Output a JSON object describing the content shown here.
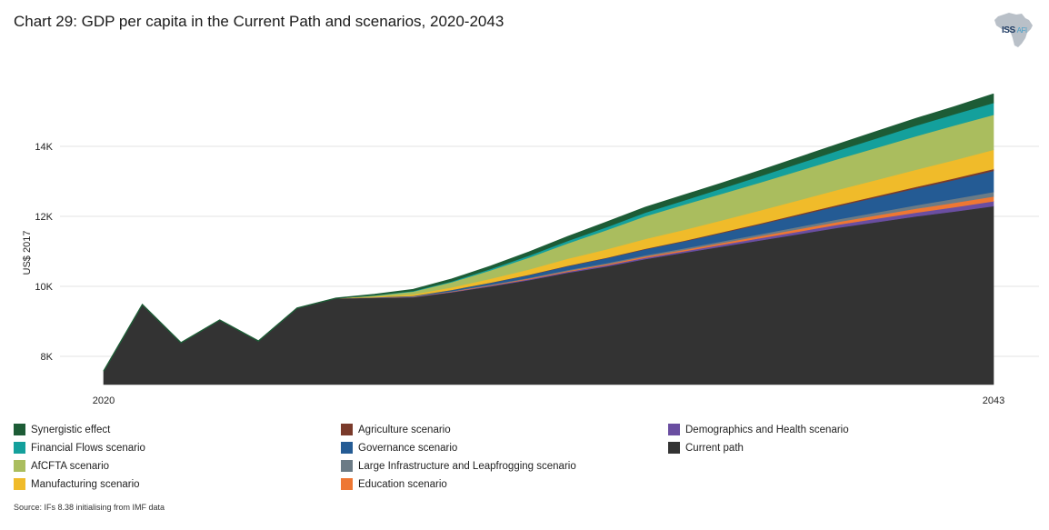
{
  "title": "Chart 29: GDP per capita in the Current Path and scenarios, 2020-2043",
  "logo": {
    "name": "ISS",
    "suffix": "AFI",
    "icon": "africa-map-icon"
  },
  "source": "Source: IFs 8.38 initialising from IMF data",
  "chart_data": {
    "type": "area",
    "stacked": true,
    "title": "Chart 29: GDP per capita in the Current Path and scenarios, 2020-2043",
    "xlabel": "",
    "ylabel": "US$ 2017",
    "ylim": [
      7200,
      15800
    ],
    "yticks": [
      8000,
      10000,
      12000,
      14000
    ],
    "ytick_labels": [
      "8K",
      "10K",
      "12K",
      "14K"
    ],
    "xticks": [
      2020,
      2043
    ],
    "xtick_labels": [
      "2020",
      "2043"
    ],
    "grid": true,
    "legend_position": "bottom",
    "x": [
      2020,
      2021,
      2022,
      2023,
      2024,
      2025,
      2026,
      2027,
      2028,
      2029,
      2030,
      2031,
      2032,
      2033,
      2034,
      2035,
      2036,
      2037,
      2038,
      2039,
      2040,
      2041,
      2042,
      2043
    ],
    "series": [
      {
        "name": "Current path",
        "color": "#333333",
        "values": [
          7580,
          9480,
          8390,
          9040,
          8440,
          9380,
          9660,
          9670,
          9690,
          9830,
          10000,
          10180,
          10390,
          10570,
          10780,
          10960,
          11140,
          11320,
          11500,
          11680,
          11840,
          12000,
          12140,
          12290
        ]
      },
      {
        "name": "Demographics and Health scenario",
        "color": "#6a4ea1",
        "values": [
          0,
          0,
          0,
          0,
          0,
          0,
          0,
          5,
          10,
          15,
          20,
          25,
          30,
          35,
          40,
          45,
          55,
          65,
          75,
          85,
          100,
          110,
          125,
          140
        ]
      },
      {
        "name": "Education scenario",
        "color": "#ee7733",
        "values": [
          0,
          0,
          0,
          0,
          0,
          0,
          0,
          3,
          6,
          10,
          15,
          20,
          25,
          30,
          35,
          40,
          50,
          60,
          70,
          80,
          95,
          110,
          125,
          140
        ]
      },
      {
        "name": "Large Infrastructure and Leapfrogging scenario",
        "color": "#6b7b86",
        "values": [
          0,
          0,
          0,
          0,
          0,
          0,
          0,
          3,
          6,
          10,
          15,
          20,
          25,
          30,
          35,
          40,
          45,
          55,
          65,
          75,
          85,
          100,
          115,
          130
        ]
      },
      {
        "name": "Governance scenario",
        "color": "#245b94",
        "values": [
          0,
          0,
          0,
          0,
          0,
          0,
          0,
          5,
          15,
          30,
          50,
          80,
          110,
          140,
          170,
          200,
          240,
          280,
          330,
          380,
          430,
          480,
          540,
          600
        ]
      },
      {
        "name": "Agriculture scenario",
        "color": "#7a3a2b",
        "values": [
          0,
          0,
          0,
          0,
          0,
          0,
          0,
          2,
          4,
          6,
          8,
          10,
          12,
          14,
          16,
          20,
          24,
          28,
          32,
          36,
          40,
          44,
          48,
          52
        ]
      },
      {
        "name": "Manufacturing scenario",
        "color": "#f0bb2a",
        "values": [
          0,
          0,
          0,
          0,
          0,
          0,
          0,
          20,
          40,
          70,
          110,
          150,
          200,
          240,
          280,
          310,
          340,
          370,
          400,
          430,
          460,
          490,
          520,
          550
        ]
      },
      {
        "name": "AfCFTA scenario",
        "color": "#aabd5e",
        "values": [
          0,
          0,
          0,
          0,
          0,
          0,
          0,
          30,
          80,
          150,
          240,
          340,
          440,
          550,
          650,
          720,
          760,
          800,
          840,
          880,
          920,
          960,
          990,
          1000
        ]
      },
      {
        "name": "Financial Flows scenario",
        "color": "#14a09c",
        "values": [
          0,
          0,
          0,
          0,
          0,
          0,
          0,
          8,
          16,
          25,
          40,
          55,
          70,
          85,
          100,
          120,
          150,
          180,
          210,
          240,
          270,
          300,
          320,
          340
        ]
      },
      {
        "name": "Synergistic effect",
        "color": "#1d5c36",
        "values": [
          0,
          0,
          0,
          0,
          0,
          0,
          0,
          20,
          40,
          60,
          75,
          100,
          120,
          140,
          150,
          150,
          150,
          160,
          170,
          180,
          190,
          200,
          210,
          250
        ]
      }
    ]
  },
  "legend": {
    "items": [
      {
        "label": "Synergistic effect",
        "color": "#1d5c36"
      },
      {
        "label": "Financial Flows scenario",
        "color": "#14a09c"
      },
      {
        "label": "AfCFTA scenario",
        "color": "#aabd5e"
      },
      {
        "label": "Manufacturing scenario",
        "color": "#f0bb2a"
      },
      {
        "label": "Agriculture scenario",
        "color": "#7a3a2b"
      },
      {
        "label": "Governance scenario",
        "color": "#245b94"
      },
      {
        "label": "Large Infrastructure and Leapfrogging scenario",
        "color": "#6b7b86"
      },
      {
        "label": "Education scenario",
        "color": "#ee7733"
      },
      {
        "label": "Demographics and Health scenario",
        "color": "#6a4ea1"
      },
      {
        "label": "Current path",
        "color": "#333333"
      }
    ]
  }
}
